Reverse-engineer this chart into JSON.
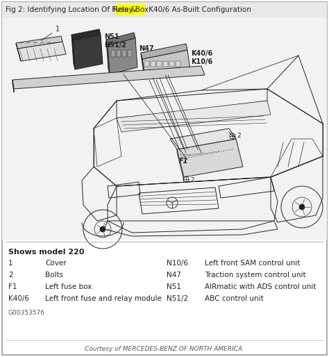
{
  "title_prefix": "Fig 2: Identifying Location Of Fuse & ",
  "title_highlight": "Relay Box",
  "title_suffix": " K40/6 As-Built Configuration",
  "highlight_color": "#FFFF00",
  "bg_color": "#FFFFFF",
  "border_color": "#AAAAAA",
  "text_color": "#000000",
  "diagram_bg": "#EEEEEE",
  "legend_header": "Shows model 220",
  "legend_items_left": [
    [
      "1",
      "Cover"
    ],
    [
      "2",
      "Bolts"
    ],
    [
      "F1",
      "Left fuse box"
    ],
    [
      "K40/6",
      "Left front fuse and relay module"
    ]
  ],
  "legend_items_right": [
    [
      "N10/6",
      "Left front SAM control unit"
    ],
    [
      "N47",
      "Traction system control unit"
    ],
    [
      "N51",
      "AIRmatic with ADS control unit"
    ],
    [
      "N51/2",
      "ABC control unit"
    ]
  ],
  "figure_id": "G00353576",
  "courtesy": "Courtesy of MERCEDES-BENZ OF NORTH AMERICA.",
  "line_color": "#222222",
  "lw": 0.7
}
